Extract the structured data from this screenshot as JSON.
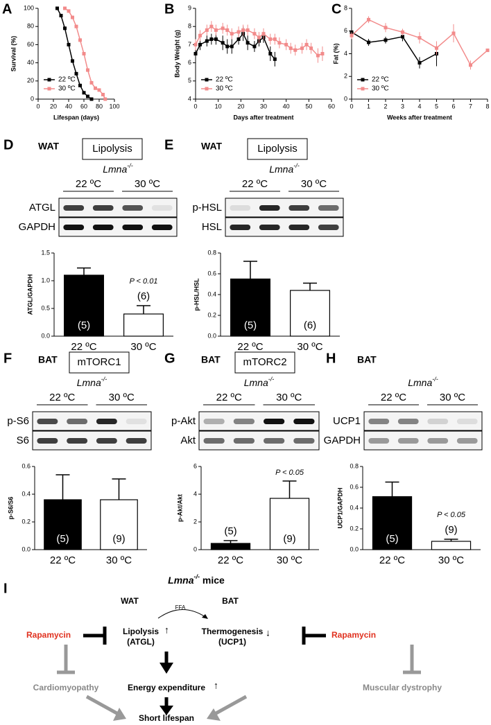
{
  "chart_data": [
    {
      "panel": "A",
      "type": "line",
      "x_label": "Lifespan (days)",
      "y_label": "Survival (%)",
      "xlim": [
        0,
        100
      ],
      "xticks": [
        0,
        20,
        40,
        60,
        80,
        100
      ],
      "ylim": [
        0,
        100
      ],
      "yticks": [
        0,
        20,
        40,
        60,
        80,
        100
      ],
      "legend": "lower left",
      "series": [
        {
          "name": "22 ºC",
          "color": "#000000",
          "x": [
            25,
            30,
            35,
            40,
            45,
            50,
            55,
            60,
            65,
            70
          ],
          "values": [
            100,
            92,
            78,
            60,
            42,
            28,
            15,
            7,
            3,
            0
          ]
        },
        {
          "name": "30 ºC",
          "color": "#f28b8b",
          "x": [
            35,
            40,
            45,
            50,
            55,
            60,
            65,
            70,
            75,
            80,
            85,
            88
          ],
          "values": [
            100,
            97,
            90,
            80,
            65,
            50,
            32,
            18,
            12,
            10,
            5,
            0
          ]
        }
      ]
    },
    {
      "panel": "B",
      "type": "line",
      "x_label": "Days after treatment",
      "y_label": "Body Weight (g)",
      "xlim": [
        0,
        60
      ],
      "xticks": [
        0,
        10,
        20,
        30,
        40,
        50,
        60
      ],
      "ylim": [
        4,
        9
      ],
      "yticks": [
        4,
        5,
        6,
        7,
        8,
        9
      ],
      "legend": "lower left",
      "series": [
        {
          "name": "22 ºC",
          "color": "#000000",
          "x": [
            0,
            2,
            5,
            7,
            9,
            12,
            14,
            16,
            19,
            21,
            23,
            26,
            28,
            30,
            33,
            35
          ],
          "values": [
            6.5,
            7.0,
            7.2,
            7.3,
            7.3,
            7.1,
            6.9,
            6.9,
            7.3,
            7.6,
            7.1,
            6.9,
            7.2,
            7.4,
            6.5,
            6.2
          ],
          "errors": [
            0.3,
            0.3,
            0.3,
            0.3,
            0.3,
            0.4,
            0.4,
            0.4,
            0.3,
            0.4,
            0.4,
            0.3,
            0.3,
            0.3,
            0.4,
            0.4
          ]
        },
        {
          "name": "30 ºC",
          "color": "#f28b8b",
          "x": [
            0,
            2,
            5,
            7,
            9,
            12,
            14,
            16,
            19,
            21,
            23,
            26,
            28,
            30,
            33,
            35,
            37,
            40,
            42,
            44,
            47,
            49,
            51,
            54,
            56
          ],
          "values": [
            7.0,
            7.5,
            7.8,
            8.0,
            7.8,
            7.9,
            7.8,
            7.6,
            7.7,
            7.8,
            7.8,
            7.6,
            7.4,
            7.6,
            7.3,
            7.3,
            7.1,
            7.0,
            6.8,
            6.7,
            6.8,
            7.0,
            6.8,
            6.4,
            6.5
          ],
          "errors": [
            0.3,
            0.3,
            0.3,
            0.3,
            0.3,
            0.3,
            0.3,
            0.3,
            0.3,
            0.3,
            0.3,
            0.3,
            0.3,
            0.3,
            0.3,
            0.3,
            0.3,
            0.3,
            0.3,
            0.3,
            0.3,
            0.3,
            0.3,
            0.4,
            0.4
          ]
        }
      ]
    },
    {
      "panel": "C",
      "type": "line",
      "x_label": "Weeks after treatment",
      "y_label": "Fat (%)",
      "xlim": [
        0,
        8
      ],
      "xticks": [
        0,
        1,
        2,
        3,
        4,
        5,
        6,
        7,
        8
      ],
      "ylim": [
        0,
        8
      ],
      "yticks": [
        0,
        2,
        4,
        6,
        8
      ],
      "legend": "lower left",
      "series": [
        {
          "name": "22 ºC",
          "color": "#000000",
          "x": [
            0,
            1,
            2,
            3,
            4,
            5
          ],
          "values": [
            5.9,
            5.0,
            5.2,
            5.5,
            3.2,
            4.0
          ],
          "errors": [
            0.3,
            0.3,
            0.3,
            0.4,
            0.5,
            1.1
          ]
        },
        {
          "name": "30 ºC",
          "color": "#f28b8b",
          "x": [
            0,
            1,
            2,
            3,
            4,
            5,
            6,
            7,
            8
          ],
          "values": [
            5.6,
            7.0,
            6.3,
            5.9,
            5.4,
            4.5,
            5.8,
            3.0,
            4.3
          ],
          "errors": [
            0.3,
            0.3,
            0.4,
            0.3,
            0.5,
            0.6,
            0.8,
            0.4,
            0.1
          ]
        }
      ]
    },
    {
      "panel": "D",
      "type": "bar",
      "tissue": "WAT",
      "blot_title": "Lipolysis",
      "genotype": {
        "name": "Lmna",
        "sup": "-/-"
      },
      "groups": [
        "22 ºC",
        "30 ºC"
      ],
      "blot_rows": [
        "ATGL",
        "GAPDH"
      ],
      "y_label": "ATGL/GAPDH",
      "ylim": [
        0,
        1.5
      ],
      "yticks": [
        {
          "value": 0,
          "label": "0.0"
        },
        0.5,
        {
          "value": 1,
          "label": "1.0"
        },
        1.5
      ],
      "categories": [
        "22 ºC",
        "30 ºC"
      ],
      "values": [
        1.1,
        0.4
      ],
      "errors": [
        0.13,
        0.15
      ],
      "colors": [
        "#000000",
        "#ffffff"
      ],
      "n_labels": [
        "(5)",
        "(6)"
      ],
      "annotation": "P < 0.01"
    },
    {
      "panel": "E",
      "type": "bar",
      "tissue": "WAT",
      "blot_title": "Lipolysis",
      "genotype": {
        "name": "Lmna",
        "sup": "-/-"
      },
      "groups": [
        "22 ºC",
        "30 ºC"
      ],
      "blot_rows": [
        "p-HSL",
        "HSL"
      ],
      "y_label": "p-HSL/HSL",
      "ylim": [
        0,
        0.8
      ],
      "yticks": [
        {
          "value": 0,
          "label": "0.0"
        },
        0.2,
        0.4,
        0.6,
        0.8
      ],
      "categories": [
        "22 ºC",
        "30 ºC"
      ],
      "values": [
        0.55,
        0.44
      ],
      "errors": [
        0.17,
        0.07
      ],
      "colors": [
        "#000000",
        "#ffffff"
      ],
      "n_labels": [
        "(5)",
        "(6)"
      ]
    },
    {
      "panel": "F",
      "type": "bar",
      "tissue": "BAT",
      "blot_title": "mTORC1",
      "genotype": {
        "name": "Lmna",
        "sup": "-/-"
      },
      "groups": [
        "22 ºC",
        "30 ºC"
      ],
      "blot_rows": [
        "p-S6",
        "S6"
      ],
      "y_label": "p-S6/S6",
      "ylim": [
        0,
        0.6
      ],
      "yticks": [
        {
          "value": 0,
          "label": "0.0"
        },
        0.2,
        0.4,
        0.6
      ],
      "categories": [
        "22 ºC",
        "30 ºC"
      ],
      "values": [
        0.36,
        0.36
      ],
      "errors": [
        0.18,
        0.15
      ],
      "colors": [
        "#000000",
        "#ffffff"
      ],
      "n_labels": [
        "(5)",
        "(9)"
      ]
    },
    {
      "panel": "G",
      "type": "bar",
      "tissue": "BAT",
      "blot_title": "mTORC2",
      "genotype": {
        "name": "Lmna",
        "sup": "-/-"
      },
      "groups": [
        "22 ºC",
        "30 ºC"
      ],
      "blot_rows": [
        "p-Akt",
        "Akt"
      ],
      "y_label": "p-Akt/Akt",
      "ylim": [
        0,
        6
      ],
      "yticks": [
        0,
        2,
        4,
        6
      ],
      "categories": [
        "22 ºC",
        "30 ºC"
      ],
      "values": [
        0.45,
        3.7
      ],
      "errors": [
        0.2,
        1.25
      ],
      "colors": [
        "#000000",
        "#ffffff"
      ],
      "n_labels": [
        "(5)",
        "(9)"
      ],
      "annotation": "P < 0.05"
    },
    {
      "panel": "H",
      "type": "bar",
      "tissue": "BAT",
      "genotype": {
        "name": "Lmna",
        "sup": "-/-"
      },
      "groups": [
        "22 ºC",
        "30 ºC"
      ],
      "blot_rows": [
        "UCP1",
        "GAPDH"
      ],
      "y_label": "UCP1/GAPDH",
      "ylim": [
        0,
        0.8
      ],
      "yticks": [
        {
          "value": 0,
          "label": "0.0"
        },
        0.2,
        0.4,
        0.6,
        0.8
      ],
      "categories": [
        "22 ºC",
        "30 ºC"
      ],
      "values": [
        0.51,
        0.08
      ],
      "errors": [
        0.14,
        0.02
      ],
      "colors": [
        "#000000",
        "#ffffff"
      ],
      "n_labels": [
        "(5)",
        "(9)"
      ],
      "annotation": "P < 0.05"
    }
  ],
  "diagram": {
    "panel": "I",
    "title": {
      "name": "Lmna",
      "sup": "-/-",
      "rest": " mice"
    },
    "wat": "WAT",
    "bat": "BAT",
    "ffa": "FFA",
    "rapamycin_left": "Rapamycin",
    "rapamycin_right": "Rapamycin",
    "lipolysis": [
      "Lipolysis",
      "(ATGL)"
    ],
    "lipolysis_change": "↑",
    "thermogenesis": [
      "Thermogenesis",
      "(UCP1)"
    ],
    "thermogenesis_change": "↓",
    "energy": "Energy expenditure",
    "energy_change": "↑",
    "cardiomyopathy": "Cardiomyopathy",
    "dystrophy": "Muscular dystrophy",
    "outcome": "Short lifespan"
  }
}
